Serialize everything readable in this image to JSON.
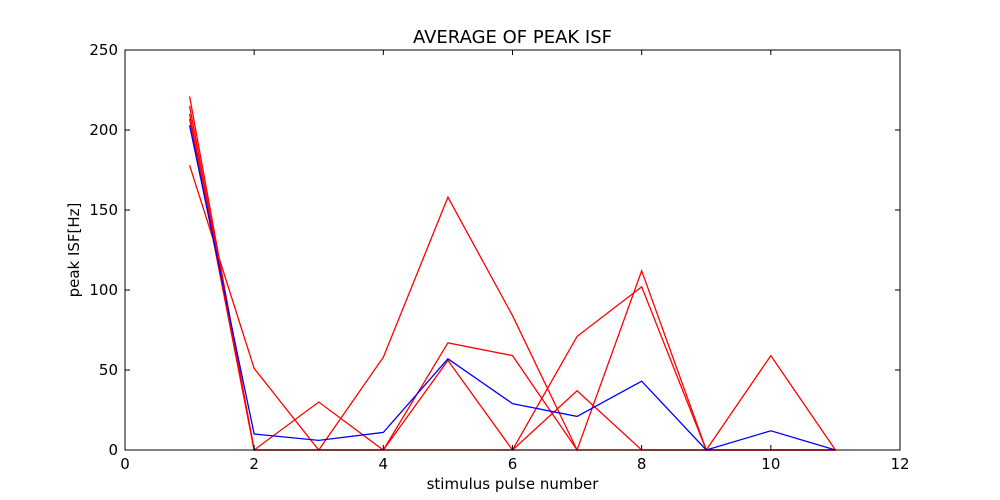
{
  "chart_data": {
    "type": "line",
    "title": "AVERAGE OF PEAK ISF",
    "xlabel": "stimulus pulse number",
    "ylabel": "peak ISF[Hz]",
    "xlim": [
      0,
      12
    ],
    "ylim": [
      0,
      250
    ],
    "xticks": [
      "0",
      "2",
      "4",
      "6",
      "8",
      "10",
      "12"
    ],
    "yticks": [
      "0",
      "50",
      "100",
      "150",
      "200",
      "250"
    ],
    "grid": false,
    "legend": "none",
    "series": [
      {
        "color": "#ff0000",
        "x": [
          1,
          2,
          3,
          4,
          5,
          6,
          7,
          8,
          9,
          10,
          11
        ],
        "y": [
          221,
          0,
          0,
          0,
          56,
          0,
          37,
          0,
          0,
          0,
          0
        ]
      },
      {
        "color": "#ff0000",
        "x": [
          1,
          2,
          3,
          4,
          5,
          6,
          7,
          8,
          9,
          10,
          11
        ],
        "y": [
          215,
          0,
          30,
          0,
          0,
          0,
          0,
          0,
          0,
          0,
          0
        ]
      },
      {
        "color": "#ff0000",
        "x": [
          1,
          2,
          3,
          4,
          5,
          6,
          7,
          8,
          9,
          10,
          11
        ],
        "y": [
          210,
          0,
          0,
          0,
          67,
          59,
          0,
          0,
          0,
          0,
          0
        ]
      },
      {
        "color": "#ff0000",
        "x": [
          1,
          2,
          3,
          4,
          5,
          6,
          7,
          8,
          9,
          10,
          11
        ],
        "y": [
          178,
          51,
          0,
          58,
          158,
          84,
          0,
          112,
          0,
          0,
          0
        ]
      },
      {
        "color": "#ff0000",
        "x": [
          1,
          2,
          3,
          4,
          5,
          6,
          7,
          8,
          9,
          10,
          11
        ],
        "y": [
          207,
          0,
          0,
          0,
          0,
          0,
          71,
          102,
          0,
          59,
          0
        ]
      },
      {
        "color": "#0000ff",
        "x": [
          1,
          2,
          3,
          4,
          5,
          6,
          7,
          8,
          9,
          10,
          11
        ],
        "y": [
          203,
          10,
          6,
          11,
          57,
          29,
          21,
          43,
          0,
          12,
          0
        ]
      }
    ]
  }
}
